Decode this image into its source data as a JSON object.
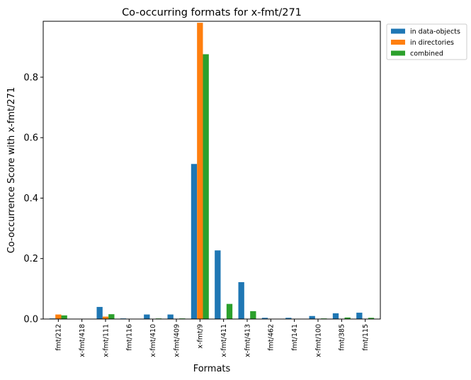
{
  "chart_data": {
    "type": "bar",
    "title": "Co-occurring formats for x-fmt/271",
    "xlabel": "Formats",
    "ylabel": "Co-occurrence Score with x-fmt/271",
    "ylim": [
      0,
      0.985
    ],
    "yticks": [
      "0.0",
      "0.2",
      "0.4",
      "0.6",
      "0.8"
    ],
    "ytick_values": [
      0,
      0.2,
      0.4,
      0.6,
      0.8
    ],
    "grid": false,
    "legend_position": "outside-top-right",
    "categories": [
      "fmt/212",
      "x-fmt/418",
      "x-fmt/111",
      "fmt/116",
      "x-fmt/410",
      "x-fmt/409",
      "x-fmt/9",
      "x-fmt/411",
      "x-fmt/413",
      "fmt/462",
      "fmt/141",
      "x-fmt/100",
      "fmt/385",
      "fmt/115"
    ],
    "series": [
      {
        "name": "in data-objects",
        "color": "#1f77b4",
        "values": [
          0.002,
          0.0,
          0.04,
          0.002,
          0.015,
          0.015,
          0.513,
          0.227,
          0.122,
          0.004,
          0.004,
          0.01,
          0.019,
          0.021
        ]
      },
      {
        "name": "in directories",
        "color": "#ff7f0e",
        "values": [
          0.015,
          0.0,
          0.008,
          0.0,
          0.0,
          0.0,
          0.98,
          0.0,
          0.0,
          0.0,
          0.0,
          0.0,
          0.0,
          0.0
        ]
      },
      {
        "name": "combined",
        "color": "#2ca02c",
        "values": [
          0.012,
          0.0,
          0.016,
          0.0,
          0.002,
          0.002,
          0.876,
          0.05,
          0.026,
          0.0,
          0.0,
          0.002,
          0.005,
          0.004
        ]
      }
    ]
  }
}
